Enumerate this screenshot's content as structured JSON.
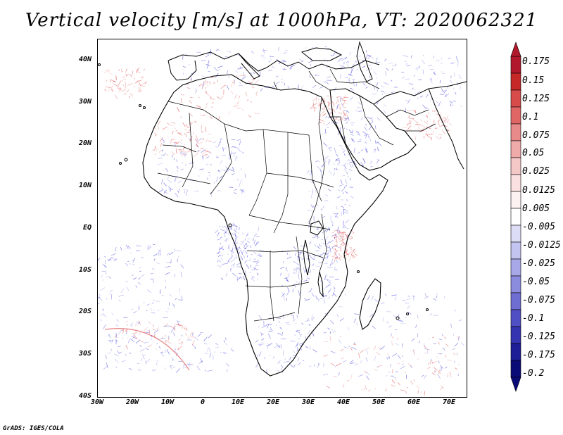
{
  "title": "Vertical velocity [m/s] at 1000hPa, VT: 2020062321",
  "footer": "GrADS: IGES/COLA",
  "map": {
    "region": "Africa",
    "y_ticks": [
      "40N",
      "30N",
      "20N",
      "10N",
      "EQ",
      "10S",
      "20S",
      "30S",
      "40S"
    ],
    "x_ticks": [
      "30W",
      "20W",
      "10W",
      "0",
      "10E",
      "20E",
      "30E",
      "40E",
      "50E",
      "60E",
      "70E"
    ]
  },
  "colorbar": {
    "labels": [
      "0.175",
      "0.15",
      "0.125",
      "0.1",
      "0.075",
      "0.05",
      "0.025",
      "0.0125",
      "0.005",
      "-0.005",
      "-0.0125",
      "-0.025",
      "-0.05",
      "-0.075",
      "-0.1",
      "-0.125",
      "-0.175",
      "-0.2"
    ],
    "colors": [
      "#b2182b",
      "#c62828",
      "#d84b4b",
      "#e06666",
      "#e88a8a",
      "#efaaaa",
      "#f5c8c8",
      "#fae0e0",
      "#fdf2f2",
      "#ffffff",
      "#dcdcf6",
      "#c4c4f0",
      "#a8a8e8",
      "#8c8cde",
      "#6e6ed2",
      "#5050c4",
      "#3434b0",
      "#1e1e96",
      "#0b0b78"
    ]
  },
  "colors": {
    "ascent": "#4a4ae0",
    "descent": "#e05050",
    "coast": "#000000"
  }
}
